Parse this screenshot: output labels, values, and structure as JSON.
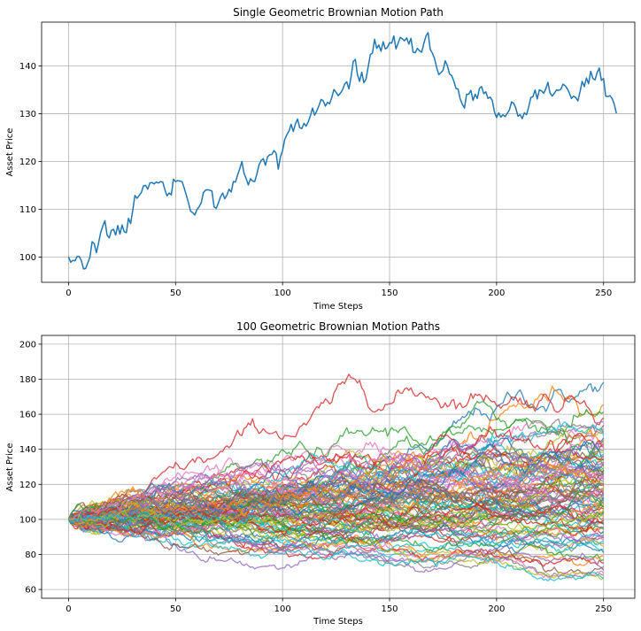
{
  "chart_data": [
    {
      "type": "line",
      "title": "Single Geometric Brownian Motion Path",
      "xlabel": "Time Steps",
      "ylabel": "Asset Price",
      "xlim": [
        -12.6,
        264.6
      ],
      "ylim": [
        94.7,
        149.2
      ],
      "xticks": [
        0,
        50,
        100,
        150,
        200,
        250
      ],
      "yticks": [
        100,
        110,
        120,
        130,
        140
      ],
      "grid": true,
      "series": [
        {
          "color": "#1f77b4",
          "x_start": 0,
          "values": [
            100.0,
            98.9,
            99.3,
            99.2,
            100.1,
            100.1,
            99.2,
            97.5,
            97.6,
            98.8,
            100.0,
            103.2,
            102.8,
            100.9,
            102.9,
            105.1,
            106.5,
            107.6,
            104.6,
            104.0,
            105.6,
            105.8,
            104.6,
            106.6,
            104.8,
            106.7,
            105.3,
            105.1,
            108.1,
            107.0,
            109.8,
            112.9,
            112.3,
            112.9,
            113.5,
            114.9,
            115.0,
            114.2,
            115.5,
            115.6,
            115.3,
            115.7,
            115.5,
            115.8,
            115.7,
            114.1,
            112.8,
            113.4,
            113.0,
            116.3,
            115.8,
            116.0,
            115.9,
            115.8,
            114.5,
            113.0,
            111.4,
            109.6,
            109.3,
            108.8,
            110.0,
            110.5,
            111.4,
            113.5,
            114.0,
            114.1,
            114.0,
            113.8,
            110.5,
            110.2,
            111.3,
            112.6,
            113.4,
            112.2,
            113.0,
            114.2,
            113.6,
            115.8,
            115.7,
            117.2,
            118.5,
            120.0,
            117.5,
            116.4,
            115.1,
            116.4,
            115.9,
            115.8,
            117.4,
            119.3,
            120.2,
            120.6,
            119.2,
            121.0,
            121.4,
            121.5,
            122.3,
            121.7,
            118.4,
            121.0,
            122.3,
            124.6,
            125.6,
            126.4,
            127.8,
            126.3,
            127.9,
            128.9,
            127.1,
            126.9,
            128.0,
            127.4,
            128.3,
            129.6,
            131.2,
            129.7,
            130.6,
            131.7,
            133.0,
            132.7,
            131.6,
            132.4,
            132.1,
            133.4,
            135.1,
            134.5,
            133.8,
            134.3,
            135.0,
            136.2,
            136.7,
            135.2,
            137.7,
            140.9,
            141.4,
            138.2,
            136.8,
            138.7,
            136.5,
            137.3,
            139.8,
            142.4,
            142.7,
            145.6,
            143.7,
            144.4,
            143.1,
            145.1,
            143.6,
            143.9,
            144.9,
            144.8,
            146.3,
            143.6,
            144.8,
            146.0,
            145.7,
            145.3,
            145.9,
            144.6,
            145.8,
            142.9,
            142.8,
            143.7,
            143.2,
            142.9,
            144.7,
            146.3,
            147.0,
            143.5,
            142.7,
            141.6,
            139.7,
            138.2,
            138.6,
            139.1,
            141.1,
            140.1,
            138.4,
            138.0,
            136.9,
            135.3,
            135.2,
            133.1,
            132.0,
            131.2,
            134.1,
            134.1,
            134.9,
            132.8,
            134.1,
            133.2,
            135.3,
            135.7,
            134.2,
            134.6,
            133.2,
            133.5,
            132.8,
            130.4,
            129.2,
            130.2,
            129.3,
            129.8,
            129.4,
            130.1,
            130.8,
            132.5,
            132.2,
            131.2,
            129.5,
            129.8,
            129.0,
            130.2,
            129.8,
            131.4,
            133.4,
            133.6,
            135.0,
            133.1,
            135.0,
            134.8,
            134.3,
            135.2,
            136.6,
            134.3,
            133.7,
            134.3,
            135.0,
            134.9,
            135.1,
            136.2,
            135.9,
            135.3,
            134.4,
            133.2,
            133.7,
            133.4,
            132.7,
            134.6,
            136.8,
            135.7,
            137.5,
            136.3,
            138.9,
            137.4,
            137.1,
            138.6,
            139.6,
            137.0,
            137.4,
            133.7,
            133.6,
            133.8,
            133.2,
            132.0,
            130.1
          ]
        }
      ]
    },
    {
      "type": "line",
      "title": "100 Geometric Brownian Motion Paths",
      "xlabel": "Time Steps",
      "ylabel": "Asset Price",
      "xlim": [
        -12.6,
        264.6
      ],
      "ylim": [
        55.0,
        205.0
      ],
      "xticks": [
        0,
        50,
        100,
        150,
        200,
        250
      ],
      "yticks": [
        60,
        80,
        100,
        120,
        140,
        160,
        180,
        200
      ],
      "grid": true,
      "palette": [
        "#1f77b4",
        "#ff7f0e",
        "#2ca02c",
        "#d62728",
        "#9467bd",
        "#8c564b",
        "#e377c2",
        "#7f7f7f",
        "#bcbd22",
        "#17becf"
      ],
      "n_paths": 100,
      "steps": 251,
      "start_value": 100,
      "final_values": [
        178.2,
        165.5,
        161.2,
        157.9,
        155.6,
        153.7,
        152.0,
        150.5,
        149.1,
        147.8,
        146.5,
        145.4,
        144.2,
        143.2,
        142.1,
        141.1,
        140.1,
        139.2,
        138.2,
        137.3,
        136.4,
        135.5,
        134.6,
        133.8,
        132.9,
        132.0,
        131.2,
        130.3,
        129.5,
        128.6,
        127.8,
        126.9,
        126.0,
        125.2,
        124.3,
        123.4,
        122.5,
        121.7,
        120.8,
        119.9,
        119.0,
        118.1,
        117.1,
        116.2,
        115.2,
        114.3,
        113.3,
        112.3,
        111.3,
        110.2,
        109.2,
        108.1,
        107.0,
        105.9,
        104.7,
        103.5,
        102.3,
        101.1,
        99.8,
        98.5,
        97.1,
        95.7,
        94.3,
        92.8,
        91.3,
        89.7,
        88.1,
        86.4,
        84.7,
        82.9,
        81.0,
        79.1,
        77.1,
        75.1,
        73.0,
        71.0,
        69.3,
        68.2,
        67.0,
        66.1,
        112.5,
        108.8,
        104.2,
        99.6,
        95.1,
        120.4,
        116.7,
        110.5,
        101.7,
        93.4,
        125.6,
        118.9,
        107.3,
        97.9,
        90.2,
        128.3,
        122.1,
        113.8,
        106.1,
        87.6
      ]
    }
  ]
}
